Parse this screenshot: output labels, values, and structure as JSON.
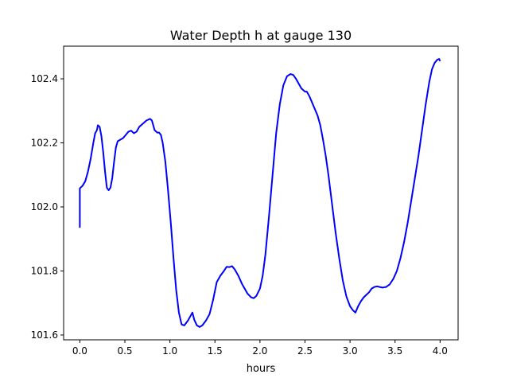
{
  "chart_data": {
    "type": "line",
    "title": "Water Depth h at gauge 130",
    "xlabel": "hours",
    "ylabel": "",
    "xlim": [
      -0.18,
      4.2
    ],
    "ylim": [
      101.585,
      102.502
    ],
    "x_ticks": [
      0.0,
      0.5,
      1.0,
      1.5,
      2.0,
      2.5,
      3.0,
      3.5,
      4.0
    ],
    "x_tick_labels": [
      "0.0",
      "0.5",
      "1.0",
      "1.5",
      "2.0",
      "2.5",
      "3.0",
      "3.5",
      "4.0"
    ],
    "y_ticks": [
      101.6,
      101.8,
      102.0,
      102.2,
      102.4
    ],
    "y_tick_labels": [
      "101.6",
      "101.8",
      "102.0",
      "102.2",
      "102.4"
    ],
    "grid": false,
    "legend": "none",
    "series": [
      {
        "color": "#0000ff",
        "x": [
          0.0,
          0.0,
          0.03,
          0.06,
          0.09,
          0.12,
          0.15,
          0.17,
          0.19,
          0.2,
          0.22,
          0.24,
          0.26,
          0.28,
          0.3,
          0.32,
          0.34,
          0.36,
          0.38,
          0.4,
          0.42,
          0.45,
          0.48,
          0.51,
          0.54,
          0.57,
          0.6,
          0.63,
          0.66,
          0.7,
          0.74,
          0.78,
          0.8,
          0.83,
          0.86,
          0.88,
          0.9,
          0.92,
          0.95,
          0.98,
          1.01,
          1.04,
          1.07,
          1.1,
          1.13,
          1.16,
          1.2,
          1.23,
          1.25,
          1.27,
          1.3,
          1.33,
          1.36,
          1.4,
          1.44,
          1.48,
          1.52,
          1.56,
          1.6,
          1.63,
          1.66,
          1.69,
          1.72,
          1.76,
          1.8,
          1.83,
          1.86,
          1.9,
          1.93,
          1.96,
          2.0,
          2.03,
          2.06,
          2.1,
          2.14,
          2.18,
          2.22,
          2.26,
          2.3,
          2.34,
          2.37,
          2.4,
          2.43,
          2.46,
          2.5,
          2.52,
          2.55,
          2.58,
          2.61,
          2.64,
          2.67,
          2.7,
          2.73,
          2.76,
          2.8,
          2.84,
          2.88,
          2.92,
          2.96,
          3.0,
          3.03,
          3.06,
          3.09,
          3.12,
          3.15,
          3.18,
          3.21,
          3.24,
          3.27,
          3.3,
          3.33,
          3.36,
          3.4,
          3.44,
          3.48,
          3.52,
          3.56,
          3.6,
          3.64,
          3.68,
          3.72,
          3.76,
          3.8,
          3.84,
          3.88,
          3.91,
          3.94,
          3.97,
          3.99,
          4.0
        ],
        "y": [
          101.935,
          102.058,
          102.066,
          102.08,
          102.11,
          102.15,
          102.2,
          102.23,
          102.24,
          102.255,
          102.25,
          102.22,
          102.17,
          102.11,
          102.06,
          102.052,
          102.06,
          102.09,
          102.14,
          102.185,
          102.205,
          102.21,
          102.215,
          102.225,
          102.235,
          102.238,
          102.23,
          102.235,
          102.25,
          102.26,
          102.27,
          102.275,
          102.27,
          102.24,
          102.232,
          102.232,
          102.225,
          102.2,
          102.14,
          102.05,
          101.95,
          101.84,
          101.74,
          101.67,
          101.633,
          101.63,
          101.645,
          101.66,
          101.67,
          101.648,
          101.63,
          101.625,
          101.63,
          101.645,
          101.665,
          101.71,
          101.765,
          101.785,
          101.8,
          101.813,
          101.812,
          101.815,
          101.805,
          101.785,
          101.76,
          101.745,
          101.73,
          101.718,
          101.715,
          101.722,
          101.745,
          101.785,
          101.85,
          101.97,
          102.1,
          102.23,
          102.32,
          102.38,
          102.408,
          102.415,
          102.412,
          102.4,
          102.385,
          102.37,
          102.36,
          102.36,
          102.345,
          102.325,
          102.305,
          102.285,
          102.255,
          102.21,
          102.16,
          102.1,
          102.01,
          101.92,
          101.84,
          101.77,
          101.72,
          101.69,
          101.678,
          101.67,
          101.69,
          101.705,
          101.717,
          101.725,
          101.733,
          101.745,
          101.75,
          101.752,
          101.75,
          101.748,
          101.75,
          101.758,
          101.775,
          101.8,
          101.84,
          101.89,
          101.95,
          102.02,
          102.09,
          102.16,
          102.24,
          102.32,
          102.39,
          102.43,
          102.45,
          102.46,
          102.462,
          102.455
        ]
      }
    ]
  }
}
